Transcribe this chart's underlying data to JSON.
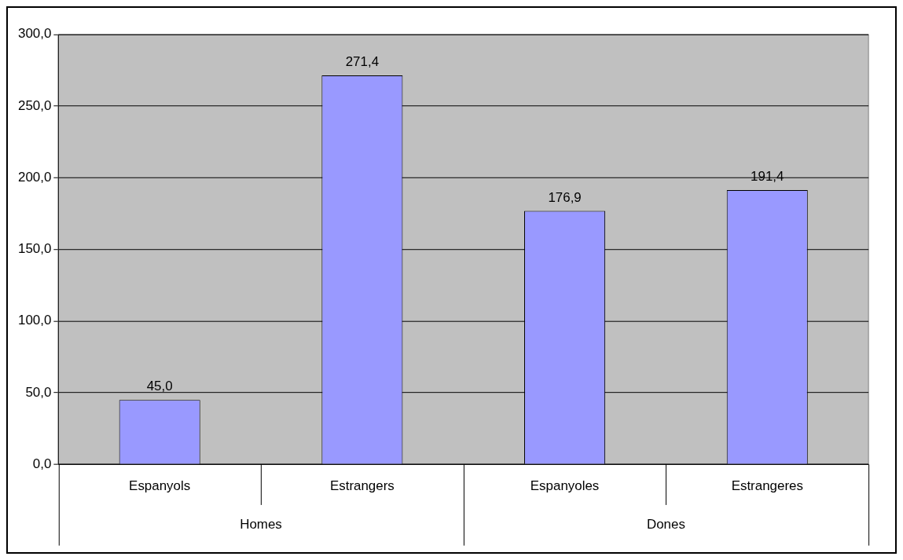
{
  "chart_data": {
    "type": "bar",
    "categories": [
      "Espanyols",
      "Estrangers",
      "Espanyoles",
      "Estrangeres"
    ],
    "values": [
      45.0,
      271.4,
      176.9,
      191.4
    ],
    "color": "#9999ff",
    "value_labels": [
      "45,0",
      "271,4",
      "176,9",
      "191,4"
    ],
    "ylim": [
      0,
      300
    ],
    "yticks": [
      {
        "value": 0,
        "label": "0,0"
      },
      {
        "value": 50,
        "label": "50,0"
      },
      {
        "value": 100,
        "label": "100,0"
      },
      {
        "value": 150,
        "label": "150,0"
      },
      {
        "value": 200,
        "label": "200,0"
      },
      {
        "value": 250,
        "label": "250,0"
      },
      {
        "value": 300,
        "label": "300,0"
      }
    ],
    "grid": "y",
    "legend": false,
    "annotations": [
      "Homes",
      "Dones"
    ]
  }
}
